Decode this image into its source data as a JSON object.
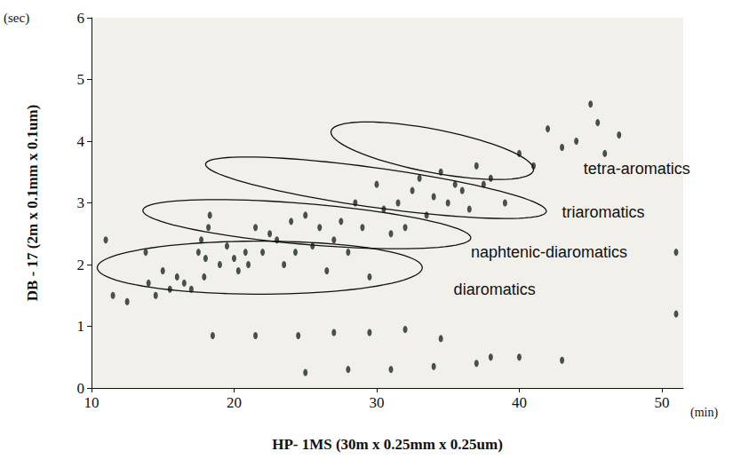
{
  "chart_data": {
    "type": "scatter",
    "xlabel": "HP- 1MS (30m x 0.25mm x 0.25um)",
    "ylabel": "DB - 17 (2m x 0.1mm x 0.1um)",
    "x_unit": "(min)",
    "y_unit": "(sec)",
    "color": "#1b2a20",
    "marker": "circle",
    "grid": false,
    "xlim": [
      10,
      51.5
    ],
    "xticks": [
      10,
      20,
      30,
      40,
      50
    ],
    "ylim": [
      0,
      6
    ],
    "yticks": [
      0,
      1,
      2,
      3,
      4,
      5,
      6
    ],
    "x": [
      11.0,
      11.5,
      12.5,
      13.8,
      14.0,
      14.5,
      15.0,
      15.5,
      16.0,
      16.5,
      17.0,
      17.5,
      17.7,
      17.9,
      18.0,
      18.2,
      18.3,
      19.0,
      19.5,
      20.0,
      20.3,
      20.8,
      21.0,
      21.5,
      22.0,
      22.5,
      23.0,
      23.5,
      24.0,
      24.3,
      25.0,
      25.5,
      26.0,
      26.5,
      27.0,
      27.5,
      28.0,
      28.5,
      29.0,
      29.5,
      30.0,
      30.5,
      31.0,
      31.5,
      32.0,
      32.5,
      33.0,
      33.5,
      34.0,
      34.5,
      35.0,
      35.5,
      36.0,
      36.5,
      37.0,
      37.5,
      38.0,
      39.0,
      40.0,
      41.0,
      42.0,
      43.0,
      44.0,
      45.0,
      45.5,
      46.0,
      47.0,
      51.0,
      51.0,
      18.5,
      21.5,
      24.5,
      27.0,
      29.5,
      32.0,
      34.5,
      38.0,
      25.0,
      28.0,
      31.0,
      34.0,
      37.0,
      40.0,
      43.0
    ],
    "values": [
      2.4,
      1.5,
      1.4,
      2.2,
      1.7,
      1.5,
      1.9,
      1.6,
      1.8,
      1.7,
      1.6,
      2.2,
      2.4,
      1.8,
      2.1,
      2.6,
      2.8,
      2.0,
      2.3,
      2.1,
      1.9,
      2.2,
      2.0,
      2.6,
      2.2,
      2.5,
      2.4,
      2.0,
      2.7,
      2.2,
      2.8,
      2.3,
      2.6,
      1.9,
      2.4,
      2.7,
      2.2,
      3.0,
      2.6,
      1.8,
      3.3,
      2.9,
      2.5,
      3.0,
      2.6,
      3.2,
      3.4,
      2.8,
      3.1,
      3.5,
      3.0,
      3.3,
      3.2,
      2.9,
      3.6,
      3.3,
      3.4,
      3.0,
      3.8,
      3.6,
      4.2,
      3.9,
      4.0,
      4.6,
      4.3,
      3.8,
      4.1,
      2.2,
      1.2,
      0.85,
      0.85,
      0.85,
      0.9,
      0.9,
      0.95,
      0.8,
      0.5,
      0.25,
      0.3,
      0.3,
      0.35,
      0.4,
      0.5,
      0.45
    ],
    "regions": [
      {
        "label": "diaromatics",
        "from": [
          10.4,
          1.95
        ],
        "to": [
          33.2,
          1.95
        ],
        "half_width": 0.43,
        "label_at": [
          35.4,
          1.6
        ]
      },
      {
        "label": "naphtenic-diaromatics",
        "from": [
          13.6,
          2.88
        ],
        "to": [
          36.6,
          2.43
        ],
        "half_width": 0.33,
        "label_at": [
          36.6,
          2.2
        ]
      },
      {
        "label": "triaromatics",
        "from": [
          18.0,
          3.63
        ],
        "to": [
          41.9,
          2.86
        ],
        "half_width": 0.32,
        "label_at": [
          43.0,
          2.85
        ]
      },
      {
        "label": "tetra-aromatics",
        "from": [
          26.8,
          4.16
        ],
        "to": [
          41.0,
          3.53
        ],
        "half_width": 0.35,
        "label_at": [
          44.5,
          3.55
        ]
      }
    ]
  }
}
